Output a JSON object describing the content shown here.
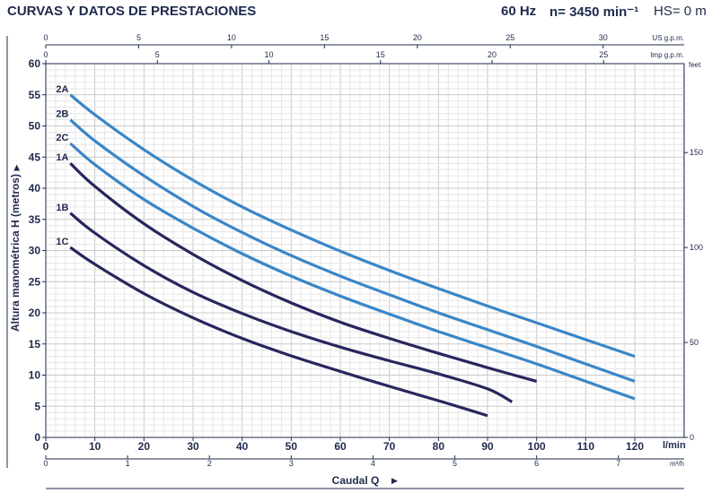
{
  "header": {
    "title": "CURVAS Y DATOS DE PRESTACIONES",
    "freq": "60 Hz",
    "speed": "n= 3450 min⁻¹",
    "hs": "HS= 0 m"
  },
  "chart_data": {
    "type": "line",
    "ylabel": "Altura manométrica H (metros)",
    "xlabel": "Caudal Q",
    "x_unit": "l/min",
    "xlim": [
      0,
      120
    ],
    "ylim": [
      0,
      60
    ],
    "x_ticks": [
      0,
      10,
      20,
      30,
      40,
      50,
      60,
      70,
      80,
      90,
      100,
      110,
      120
    ],
    "y_ticks": [
      0,
      5,
      10,
      15,
      20,
      25,
      30,
      35,
      40,
      45,
      50,
      55,
      60
    ],
    "grid": true,
    "axis_us_gpm": {
      "label": "US g.p.m.",
      "ticks": [
        0,
        5,
        10,
        15,
        20,
        25,
        30
      ]
    },
    "axis_imp_gpm": {
      "label": "Imp g.p.m.",
      "ticks": [
        0,
        5,
        10,
        15,
        20,
        25
      ]
    },
    "axis_m3h": {
      "label": "m³/h",
      "ticks": [
        0,
        1,
        2,
        3,
        4,
        5,
        6,
        7
      ]
    },
    "axis_feet": {
      "label": "feet",
      "ticks": [
        0,
        50,
        100,
        150
      ]
    },
    "colors": {
      "A_B_C_2": "#3a86c8",
      "A_B_C_1": "#27275e",
      "text": "#1f2a4d"
    },
    "series": [
      {
        "name": "2A",
        "color": "#3a86c8",
        "x": [
          5,
          10,
          20,
          30,
          40,
          50,
          60,
          70,
          80,
          90,
          100,
          110,
          120
        ],
        "y": [
          55,
          51.8,
          46.2,
          41.3,
          37,
          33.3,
          29.9,
          26.8,
          23.9,
          21.1,
          18.4,
          15.7,
          13
        ]
      },
      {
        "name": "2B",
        "color": "#3a86c8",
        "x": [
          5,
          10,
          20,
          30,
          40,
          50,
          60,
          70,
          80,
          90,
          100,
          110,
          120
        ],
        "y": [
          51,
          47.6,
          42,
          37.1,
          32.9,
          29.2,
          25.9,
          22.9,
          20,
          17.3,
          14.6,
          11.8,
          9
        ]
      },
      {
        "name": "2C",
        "color": "#3a86c8",
        "x": [
          5,
          10,
          20,
          30,
          40,
          50,
          60,
          70,
          80,
          90,
          100,
          110,
          120
        ],
        "y": [
          47.2,
          43.8,
          38.2,
          33.6,
          29.5,
          25.9,
          22.7,
          19.8,
          17,
          14.4,
          11.8,
          9,
          6.2
        ]
      },
      {
        "name": "1A",
        "color": "#27275e",
        "x": [
          5,
          10,
          20,
          30,
          40,
          50,
          60,
          70,
          80,
          90,
          100
        ],
        "y": [
          44,
          40.3,
          34.3,
          29.4,
          25.2,
          21.6,
          18.5,
          15.9,
          13.5,
          11.2,
          9
        ]
      },
      {
        "name": "1B",
        "color": "#27275e",
        "x": [
          5,
          10,
          20,
          30,
          40,
          50,
          60,
          70,
          80,
          90,
          95
        ],
        "y": [
          36,
          32.8,
          27.6,
          23.3,
          19.9,
          17,
          14.5,
          12.3,
          10.2,
          7.8,
          5.7
        ]
      },
      {
        "name": "1C",
        "color": "#27275e",
        "x": [
          5,
          10,
          20,
          30,
          40,
          50,
          60,
          70,
          80,
          90
        ],
        "y": [
          30.5,
          27.8,
          23.1,
          19.2,
          15.9,
          13.1,
          10.6,
          8.2,
          5.9,
          3.5
        ]
      }
    ]
  }
}
